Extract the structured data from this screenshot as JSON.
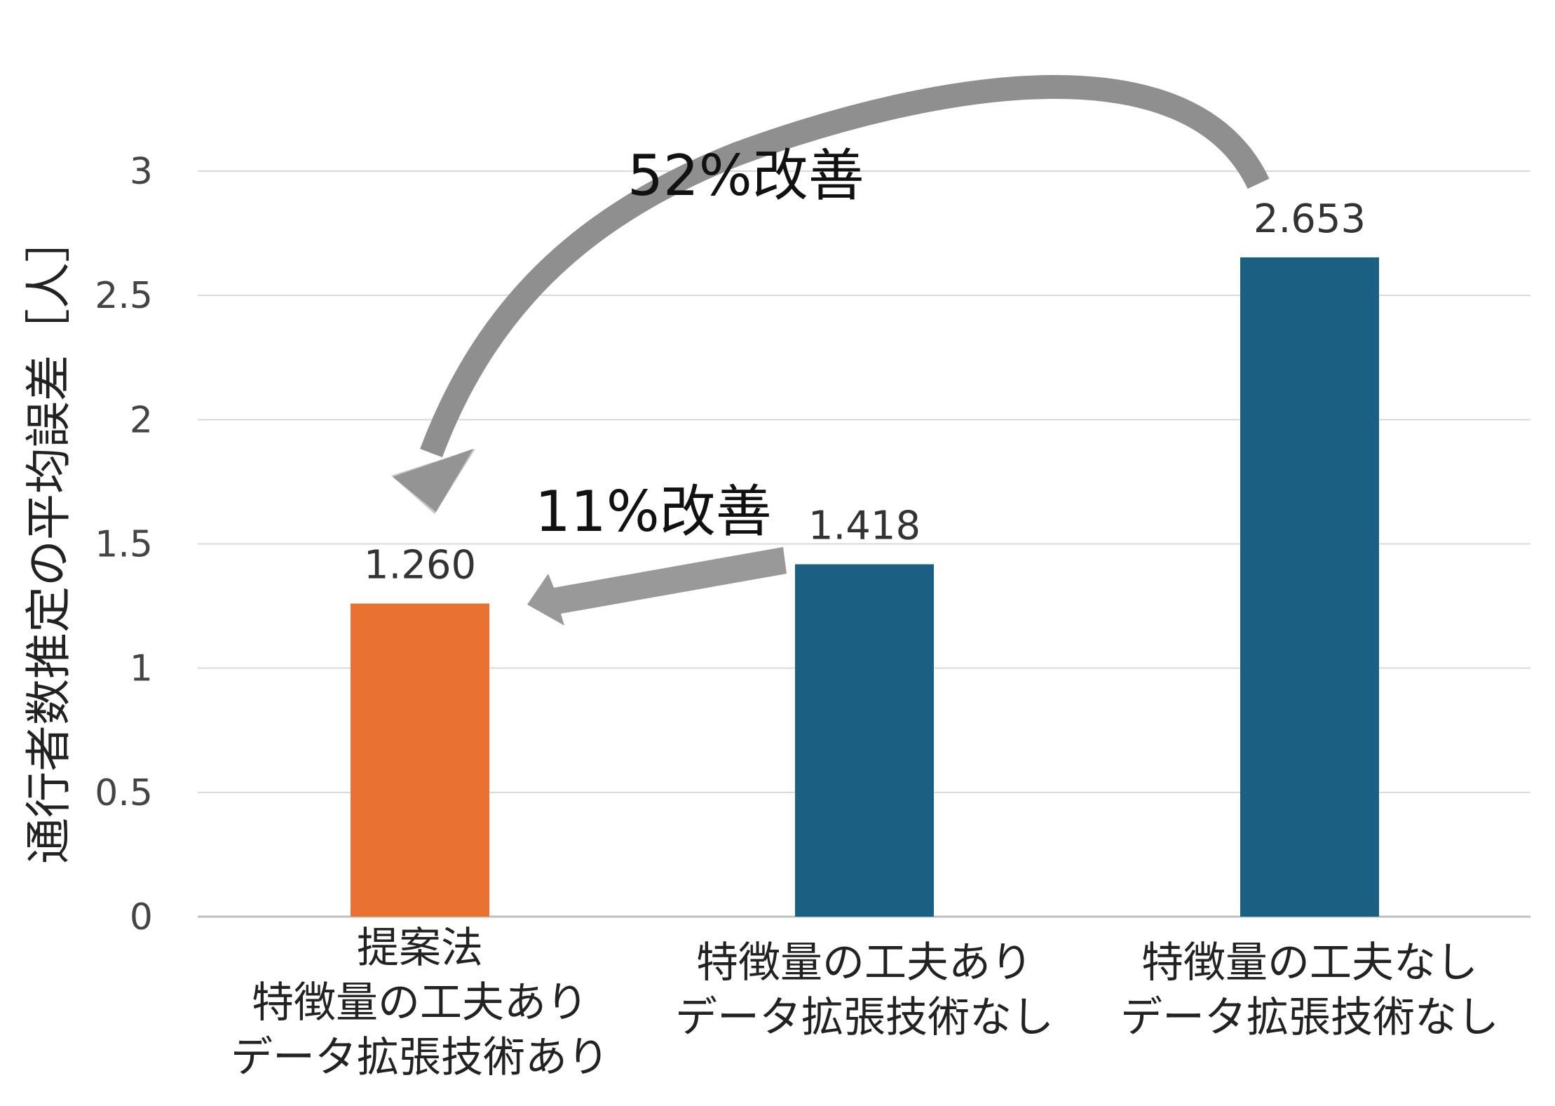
{
  "chart_data": {
    "type": "bar",
    "categories": [
      [
        "提案法",
        "特徴量の工夫あり",
        "データ拡張技術あり"
      ],
      [
        "特徴量の工夫あり",
        "データ拡張技術なし"
      ],
      [
        "特徴量の工夫なし",
        "データ拡張技術なし"
      ]
    ],
    "values": [
      1.26,
      1.418,
      2.653
    ],
    "data_labels": [
      "1.260",
      "1.418",
      "2.653"
    ],
    "bar_colors": [
      "#E97132",
      "#196082",
      "#196082"
    ],
    "ylabel": "通行者数推定の平均誤差［人］",
    "ylim": [
      0,
      3
    ],
    "yticks": [
      0,
      0.5,
      1,
      1.5,
      2,
      2.5,
      3
    ],
    "ytick_labels": [
      "0",
      "0.5",
      "1",
      "1.5",
      "2",
      "2.5",
      "3"
    ],
    "grid": true,
    "annotations": [
      {
        "text": "52%改善",
        "from_category": 2,
        "to_category": 0
      },
      {
        "text": "11%改善",
        "from_category": 1,
        "to_category": 0
      }
    ],
    "arrow_color": "#999999"
  }
}
